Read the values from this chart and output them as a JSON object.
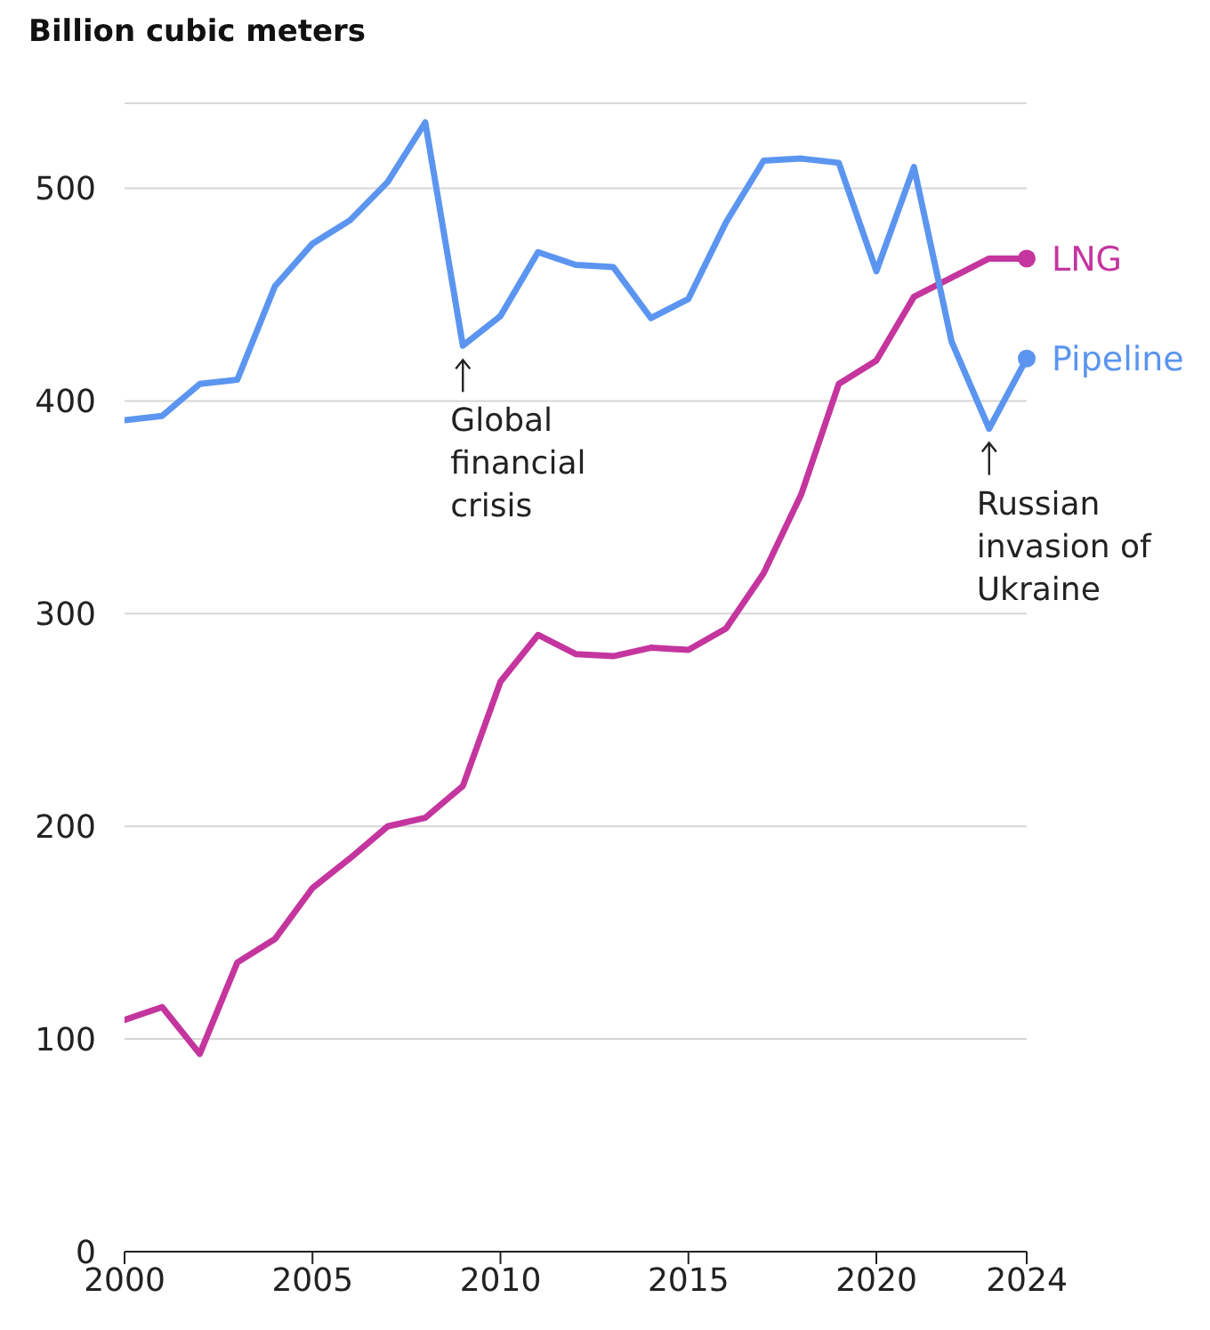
{
  "chart_data": {
    "type": "line",
    "ylabel": "Billion cubic meters",
    "x": [
      2000,
      2001,
      2002,
      2003,
      2004,
      2005,
      2006,
      2007,
      2008,
      2009,
      2010,
      2011,
      2012,
      2013,
      2014,
      2015,
      2016,
      2017,
      2018,
      2019,
      2020,
      2021,
      2022,
      2023,
      2024
    ],
    "series": [
      {
        "name": "LNG",
        "color": "#c4359e",
        "values": [
          109,
          115,
          93,
          136,
          147,
          171,
          185,
          200,
          204,
          219,
          268,
          290,
          281,
          280,
          284,
          283,
          293,
          319,
          356,
          408,
          419,
          449,
          458,
          467,
          467
        ]
      },
      {
        "name": "Pipeline",
        "color": "#5b95f0",
        "values": [
          391,
          393,
          408,
          410,
          454,
          474,
          485,
          503,
          531,
          426,
          440,
          470,
          464,
          463,
          439,
          448,
          484,
          513,
          514,
          512,
          461,
          510,
          428,
          387,
          420
        ]
      }
    ],
    "xlim": [
      2000,
      2024
    ],
    "xticks": [
      2000,
      2005,
      2010,
      2015,
      2020,
      2024
    ],
    "ylim": [
      0,
      540
    ],
    "yticks": [
      0,
      100,
      200,
      300,
      400,
      500
    ],
    "grid": "y",
    "legend": false,
    "marker": "none",
    "line_style": "solid",
    "annotations": [
      {
        "text": "Global financial crisis",
        "x": 2009,
        "y": 426
      },
      {
        "text": "Russian invasion of Ukraine",
        "x": 2023,
        "y": 387
      }
    ]
  }
}
